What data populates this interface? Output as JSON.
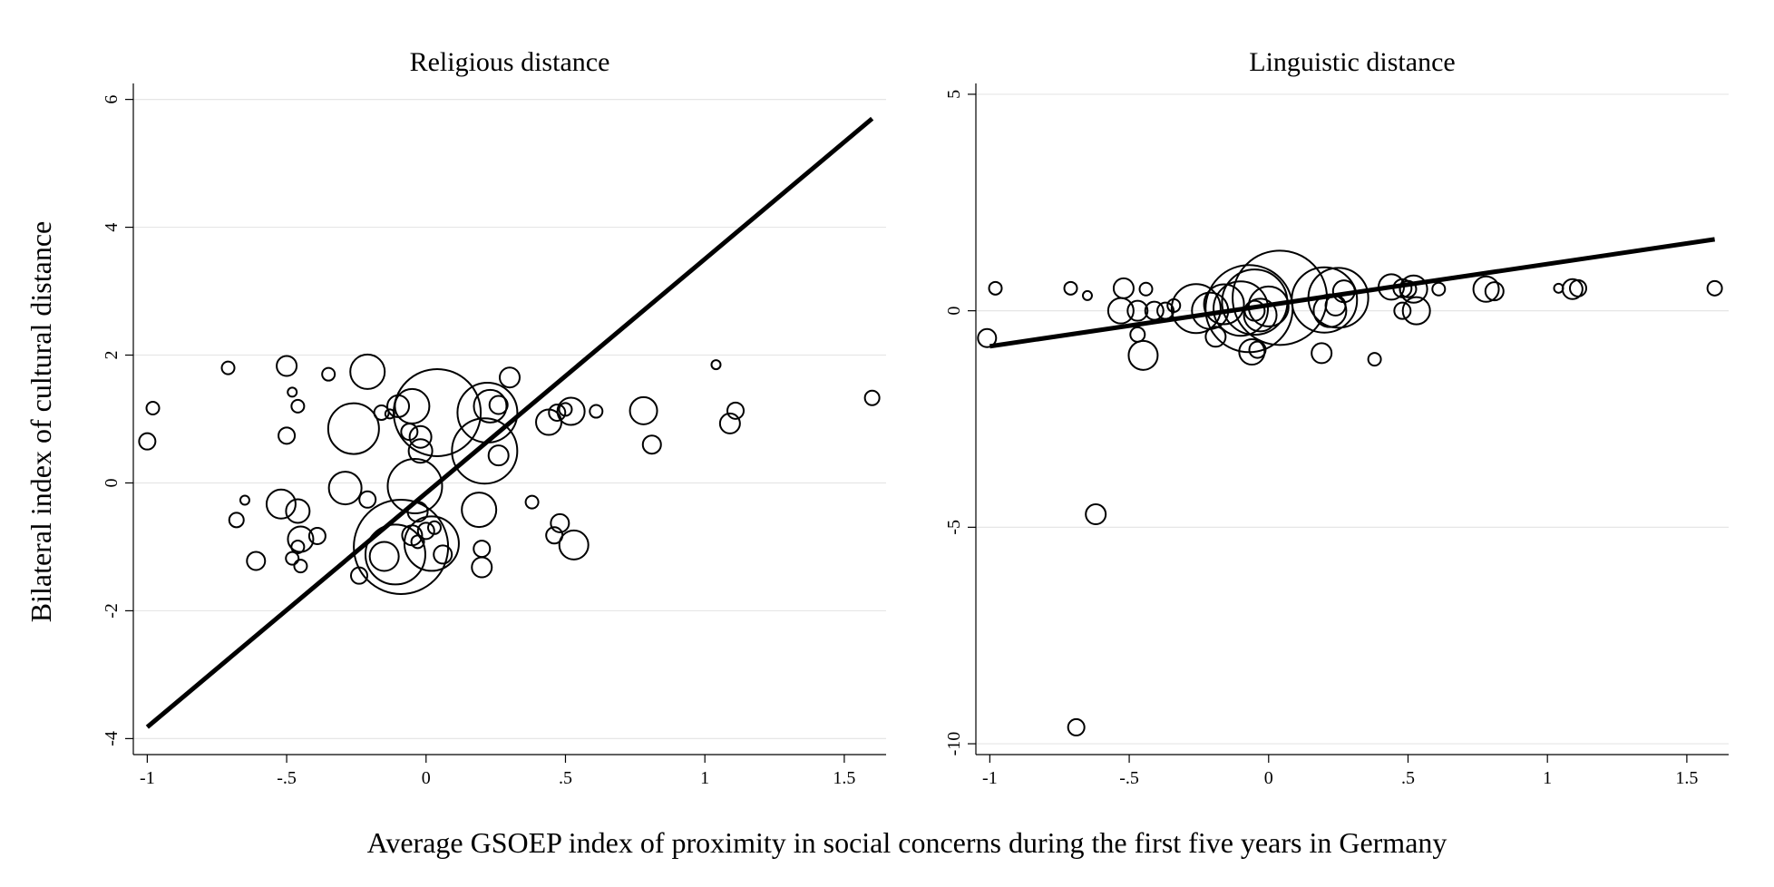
{
  "figure": {
    "ylabel": "Bilateral index of cultural distance",
    "xlabel": "Average GSOEP index of proximity in social concerns during the first five years in Germany"
  },
  "chart_data": [
    {
      "type": "scatter",
      "title": "Religious distance",
      "xlim": [
        -1.05,
        1.65
      ],
      "ylim": [
        -4.25,
        6.25
      ],
      "xticks": [
        {
          "value": -1,
          "label": "-1"
        },
        {
          "value": -0.5,
          "label": "-.5"
        },
        {
          "value": 0,
          "label": "0"
        },
        {
          "value": 0.5,
          "label": ".5"
        },
        {
          "value": 1,
          "label": "1"
        },
        {
          "value": 1.5,
          "label": "1.5"
        }
      ],
      "yticks": [
        {
          "value": -4,
          "label": "-4"
        },
        {
          "value": -2,
          "label": "-2"
        },
        {
          "value": 0,
          "label": "0"
        },
        {
          "value": 2,
          "label": "2"
        },
        {
          "value": 4,
          "label": "4"
        },
        {
          "value": 6,
          "label": "6"
        }
      ],
      "grid": true,
      "fit_line": {
        "x": [
          -1,
          1.6
        ],
        "y": [
          -3.82,
          5.7
        ]
      },
      "points": [
        {
          "x": -1.0,
          "y": 0.65,
          "w": 9
        },
        {
          "x": -0.98,
          "y": 1.17,
          "w": 7
        },
        {
          "x": -0.71,
          "y": 1.8,
          "w": 7
        },
        {
          "x": -0.68,
          "y": -0.58,
          "w": 8
        },
        {
          "x": -0.65,
          "y": -0.27,
          "w": 5
        },
        {
          "x": -0.61,
          "y": -1.22,
          "w": 10
        },
        {
          "x": -0.5,
          "y": 1.83,
          "w": 11
        },
        {
          "x": -0.5,
          "y": 0.74,
          "w": 9
        },
        {
          "x": -0.52,
          "y": -0.33,
          "w": 16
        },
        {
          "x": -0.48,
          "y": 1.42,
          "w": 5
        },
        {
          "x": -0.46,
          "y": 1.2,
          "w": 7
        },
        {
          "x": -0.46,
          "y": -0.44,
          "w": 13
        },
        {
          "x": -0.45,
          "y": -0.88,
          "w": 14
        },
        {
          "x": -0.46,
          "y": -1.0,
          "w": 7
        },
        {
          "x": -0.45,
          "y": -1.3,
          "w": 7
        },
        {
          "x": -0.48,
          "y": -1.18,
          "w": 7
        },
        {
          "x": -0.39,
          "y": -0.83,
          "w": 9
        },
        {
          "x": -0.35,
          "y": 1.7,
          "w": 7
        },
        {
          "x": -0.26,
          "y": 0.85,
          "w": 28
        },
        {
          "x": -0.29,
          "y": -0.08,
          "w": 18
        },
        {
          "x": -0.21,
          "y": 1.74,
          "w": 19
        },
        {
          "x": -0.21,
          "y": -0.26,
          "w": 9
        },
        {
          "x": -0.24,
          "y": -1.45,
          "w": 9
        },
        {
          "x": -0.16,
          "y": 1.1,
          "w": 8
        },
        {
          "x": -0.13,
          "y": 1.08,
          "w": 5
        },
        {
          "x": -0.1,
          "y": 1.2,
          "w": 12
        },
        {
          "x": -0.05,
          "y": 1.2,
          "w": 19
        },
        {
          "x": -0.06,
          "y": 0.8,
          "w": 9
        },
        {
          "x": -0.02,
          "y": 0.72,
          "w": 12
        },
        {
          "x": -0.02,
          "y": 0.5,
          "w": 13
        },
        {
          "x": 0.04,
          "y": 1.1,
          "w": 48
        },
        {
          "x": 0.21,
          "y": 0.5,
          "w": 36
        },
        {
          "x": 0.22,
          "y": 1.1,
          "w": 33
        },
        {
          "x": 0.23,
          "y": 1.2,
          "w": 18
        },
        {
          "x": 0.26,
          "y": 1.22,
          "w": 10
        },
        {
          "x": 0.3,
          "y": 1.65,
          "w": 11
        },
        {
          "x": 0.26,
          "y": 0.43,
          "w": 11
        },
        {
          "x": -0.04,
          "y": -0.05,
          "w": 30
        },
        {
          "x": 0.19,
          "y": -0.42,
          "w": 19
        },
        {
          "x": 0.38,
          "y": -0.3,
          "w": 7
        },
        {
          "x": -0.03,
          "y": -0.45,
          "w": 11
        },
        {
          "x": -0.09,
          "y": -1.0,
          "w": 52
        },
        {
          "x": -0.11,
          "y": -1.12,
          "w": 33
        },
        {
          "x": -0.15,
          "y": -1.15,
          "w": 16
        },
        {
          "x": 0.02,
          "y": -0.95,
          "w": 30
        },
        {
          "x": -0.05,
          "y": -0.82,
          "w": 11
        },
        {
          "x": 0.0,
          "y": -0.75,
          "w": 9
        },
        {
          "x": 0.03,
          "y": -0.7,
          "w": 7
        },
        {
          "x": -0.03,
          "y": -0.92,
          "w": 7
        },
        {
          "x": 0.06,
          "y": -1.12,
          "w": 10
        },
        {
          "x": 0.2,
          "y": -1.03,
          "w": 9
        },
        {
          "x": 0.2,
          "y": -1.32,
          "w": 11
        },
        {
          "x": 0.44,
          "y": 0.95,
          "w": 14
        },
        {
          "x": 0.47,
          "y": 1.1,
          "w": 9
        },
        {
          "x": 0.5,
          "y": 1.15,
          "w": 7
        },
        {
          "x": 0.52,
          "y": 1.12,
          "w": 15
        },
        {
          "x": 0.61,
          "y": 1.12,
          "w": 7
        },
        {
          "x": 0.48,
          "y": -0.63,
          "w": 10
        },
        {
          "x": 0.46,
          "y": -0.82,
          "w": 9
        },
        {
          "x": 0.53,
          "y": -0.97,
          "w": 16
        },
        {
          "x": 0.78,
          "y": 1.13,
          "w": 15
        },
        {
          "x": 0.81,
          "y": 0.6,
          "w": 10
        },
        {
          "x": 1.04,
          "y": 1.85,
          "w": 5
        },
        {
          "x": 1.09,
          "y": 0.93,
          "w": 11
        },
        {
          "x": 1.11,
          "y": 1.13,
          "w": 9
        },
        {
          "x": 1.6,
          "y": 1.33,
          "w": 8
        }
      ]
    },
    {
      "type": "scatter",
      "title": "Linguistic distance",
      "xlim": [
        -1.05,
        1.65
      ],
      "ylim": [
        -10.25,
        5.25
      ],
      "xticks": [
        {
          "value": -1,
          "label": "-1"
        },
        {
          "value": -0.5,
          "label": "-.5"
        },
        {
          "value": 0,
          "label": "0"
        },
        {
          "value": 0.5,
          "label": ".5"
        },
        {
          "value": 1,
          "label": "1"
        },
        {
          "value": 1.5,
          "label": "1.5"
        }
      ],
      "yticks": [
        {
          "value": -10,
          "label": "-10"
        },
        {
          "value": -5,
          "label": "-5"
        },
        {
          "value": 0,
          "label": "0"
        },
        {
          "value": 5,
          "label": "5"
        }
      ],
      "grid": true,
      "fit_line": {
        "x": [
          -1,
          1.6
        ],
        "y": [
          -0.82,
          1.65
        ]
      },
      "points": [
        {
          "x": -1.01,
          "y": -0.63,
          "w": 10
        },
        {
          "x": -0.98,
          "y": 0.52,
          "w": 7
        },
        {
          "x": -0.71,
          "y": 0.52,
          "w": 7
        },
        {
          "x": -0.65,
          "y": 0.35,
          "w": 5
        },
        {
          "x": -0.52,
          "y": 0.52,
          "w": 11
        },
        {
          "x": -0.53,
          "y": 0.0,
          "w": 14
        },
        {
          "x": -0.47,
          "y": 0.0,
          "w": 11
        },
        {
          "x": -0.47,
          "y": -0.55,
          "w": 8
        },
        {
          "x": -0.44,
          "y": 0.5,
          "w": 7
        },
        {
          "x": -0.41,
          "y": 0.0,
          "w": 10
        },
        {
          "x": -0.45,
          "y": -1.03,
          "w": 16
        },
        {
          "x": -0.37,
          "y": 0.0,
          "w": 9
        },
        {
          "x": -0.34,
          "y": 0.12,
          "w": 7
        },
        {
          "x": -0.26,
          "y": 0.05,
          "w": 27
        },
        {
          "x": -0.21,
          "y": 0.0,
          "w": 20
        },
        {
          "x": -0.16,
          "y": 0.15,
          "w": 22
        },
        {
          "x": -0.19,
          "y": -0.6,
          "w": 11
        },
        {
          "x": -0.1,
          "y": 0.05,
          "w": 30
        },
        {
          "x": -0.07,
          "y": 0.05,
          "w": 48
        },
        {
          "x": -0.05,
          "y": 0.2,
          "w": 36
        },
        {
          "x": 0.0,
          "y": 0.1,
          "w": 22
        },
        {
          "x": 0.04,
          "y": 0.3,
          "w": 52
        },
        {
          "x": -0.03,
          "y": -0.1,
          "w": 18
        },
        {
          "x": -0.05,
          "y": 0.0,
          "w": 11
        },
        {
          "x": -0.06,
          "y": -0.95,
          "w": 14
        },
        {
          "x": -0.04,
          "y": -0.9,
          "w": 9
        },
        {
          "x": 0.2,
          "y": 0.25,
          "w": 36
        },
        {
          "x": 0.25,
          "y": 0.3,
          "w": 33
        },
        {
          "x": 0.22,
          "y": 0.0,
          "w": 18
        },
        {
          "x": 0.24,
          "y": 0.12,
          "w": 11
        },
        {
          "x": 0.27,
          "y": 0.45,
          "w": 12
        },
        {
          "x": 0.19,
          "y": -0.98,
          "w": 11
        },
        {
          "x": 0.38,
          "y": -1.12,
          "w": 7
        },
        {
          "x": 0.44,
          "y": 0.55,
          "w": 14
        },
        {
          "x": 0.48,
          "y": 0.52,
          "w": 10
        },
        {
          "x": 0.5,
          "y": 0.5,
          "w": 9
        },
        {
          "x": 0.52,
          "y": 0.5,
          "w": 15
        },
        {
          "x": 0.53,
          "y": 0.0,
          "w": 15
        },
        {
          "x": 0.61,
          "y": 0.5,
          "w": 7
        },
        {
          "x": 0.48,
          "y": 0.0,
          "w": 9
        },
        {
          "x": 0.78,
          "y": 0.5,
          "w": 14
        },
        {
          "x": 0.81,
          "y": 0.45,
          "w": 10
        },
        {
          "x": 1.04,
          "y": 0.52,
          "w": 5
        },
        {
          "x": 1.09,
          "y": 0.5,
          "w": 11
        },
        {
          "x": 1.11,
          "y": 0.52,
          "w": 9
        },
        {
          "x": 1.6,
          "y": 0.52,
          "w": 8
        },
        {
          "x": -0.62,
          "y": -4.7,
          "w": 11
        },
        {
          "x": -0.69,
          "y": -9.62,
          "w": 9
        }
      ]
    }
  ]
}
